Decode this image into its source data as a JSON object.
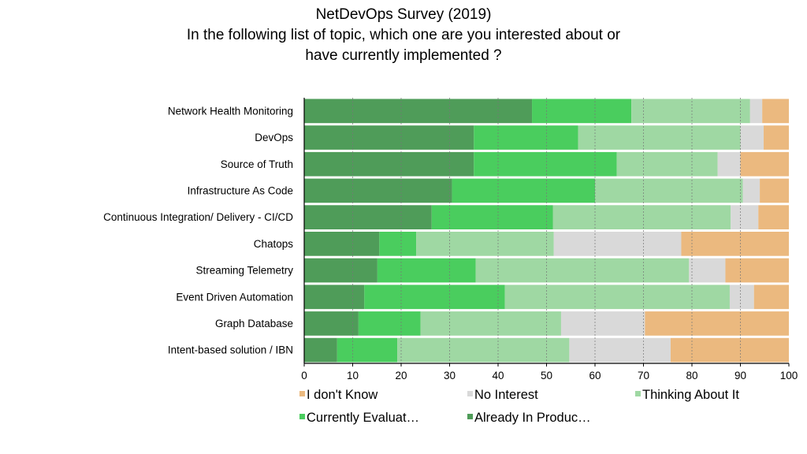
{
  "chart_data": {
    "type": "bar",
    "orientation": "horizontal",
    "stacked": true,
    "title": [
      "NetDevOps Survey (2019)",
      "In the following list of topic, which one are you interested about or",
      "have currently implemented ?"
    ],
    "xlabel": "",
    "ylabel": "",
    "xlim": [
      0,
      100
    ],
    "xticks": [
      "0",
      "10",
      "20",
      "30",
      "40",
      "50",
      "60",
      "70",
      "80",
      "90",
      "100"
    ],
    "grid": "vertical-dotted",
    "legend_position": "bottom",
    "categories": [
      "Network Health Monitoring",
      "DevOps",
      "Source of Truth",
      "Infrastructure As Code",
      "Continuous Integration/ Delivery - CI/CD",
      "Chatops",
      "Streaming Telemetry",
      "Event Driven Automation",
      "Graph Database",
      "Intent-based solution / IBN"
    ],
    "series": [
      {
        "name": "Already In Produc…",
        "color": "#4f9c59",
        "values": [
          47.0,
          35.0,
          35.0,
          30.5,
          26.3,
          15.5,
          15.1,
          12.4,
          11.2,
          6.8
        ]
      },
      {
        "name": "Currently Evaluat…",
        "color": "#4acd5e",
        "values": [
          20.5,
          21.5,
          29.5,
          29.5,
          25.0,
          7.6,
          20.3,
          29.0,
          12.8,
          12.4
        ]
      },
      {
        "name": "Thinking About It",
        "color": "#9fd8a3",
        "values": [
          24.5,
          33.5,
          20.8,
          30.5,
          36.7,
          28.4,
          44.0,
          46.4,
          29.0,
          35.5
        ]
      },
      {
        "name": "No Interest",
        "color": "#d9d9d9",
        "values": [
          2.5,
          4.8,
          4.7,
          3.5,
          5.7,
          26.3,
          7.5,
          5.0,
          17.3,
          20.9
        ]
      },
      {
        "name": "I don't Know",
        "color": "#ebb97f",
        "values": [
          5.5,
          5.2,
          10.0,
          6.0,
          6.3,
          22.2,
          13.1,
          7.2,
          29.7,
          24.4
        ]
      }
    ],
    "legend_order": [
      "I don't Know",
      "No Interest",
      "Thinking About It",
      "Currently Evaluat…",
      "Already In Produc…"
    ]
  }
}
